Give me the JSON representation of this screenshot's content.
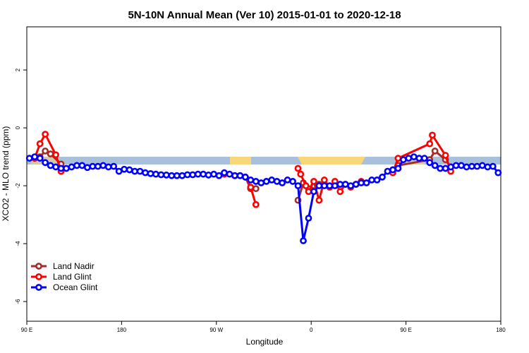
{
  "chart_data": {
    "type": "line",
    "title": "5N-10N Annual Mean (Ver 10)   2015-01-01 to 2020-12-18",
    "xlabel": "Longitude",
    "ylabel": "XCO2 - MLO trend (ppm)",
    "xlim": [
      90,
      540
    ],
    "xticks": [
      {
        "value": 90,
        "label": "90 E"
      },
      {
        "value": 180,
        "label": "180"
      },
      {
        "value": 270,
        "label": "90 W"
      },
      {
        "value": 360,
        "label": "0"
      },
      {
        "value": 450,
        "label": "90 E"
      },
      {
        "value": 540,
        "label": "180"
      }
    ],
    "ylim": [
      -6.68,
      3.49
    ],
    "yticks": [
      2,
      0,
      -2,
      -4,
      -6
    ],
    "legend": "bottom-left",
    "series": [
      {
        "name": "Land Nadir",
        "color": "#a52a2a",
        "x": [
          97.5,
          102.5,
          107.5,
          112.5,
          122.5,
          200,
          292.5,
          297.5,
          302.5,
          307.5,
          330,
          347.5,
          352.5,
          357.5,
          362.5,
          367.5,
          372.5,
          400,
          437.5,
          442.5,
          472.5,
          477.5,
          487.5,
          492.5
        ],
        "values": [
          -1.05,
          -1.0,
          -0.8,
          -0.9,
          -1.25,
          null,
          -1.65,
          -1.7,
          -2.1,
          -2.1,
          null,
          -2.5,
          -1.9,
          -2.1,
          -2.0,
          -1.95,
          -1.95,
          null,
          -1.45,
          -1.3,
          -1.1,
          -0.8,
          -1.1,
          -1.35
        ]
      },
      {
        "name": "Land Glint",
        "color": "#ff0000",
        "x": [
          97.5,
          102.5,
          107.5,
          117.5,
          122.5,
          200,
          277.5,
          287.5,
          297.5,
          302.5,
          307.5,
          330,
          347.5,
          350,
          355,
          357.5,
          362.5,
          367.5,
          372.5,
          377.5,
          382.5,
          387.5,
          392.5,
          397.5,
          402.5,
          407.5,
          420,
          437.5,
          442.5,
          472.5,
          475,
          487.5,
          492.5
        ],
        "values": [
          -1.05,
          -0.55,
          -0.22,
          -0.93,
          -1.5,
          null,
          -1.6,
          -1.65,
          -1.7,
          -2.05,
          -2.65,
          null,
          -1.4,
          -1.6,
          -2.0,
          -2.2,
          -1.85,
          -2.5,
          -1.8,
          -2.05,
          -1.85,
          -2.2,
          -1.95,
          -2.05,
          -1.95,
          -1.85,
          null,
          -1.55,
          -1.05,
          -0.55,
          -0.25,
          -0.95,
          -1.5
        ]
      },
      {
        "name": "Ocean Glint",
        "color": "#0000ff",
        "x": [
          92.5,
          97.5,
          102.5,
          107.5,
          112.5,
          117.5,
          122.5,
          127.5,
          132.5,
          137.5,
          142.5,
          147.5,
          152.5,
          157.5,
          162.5,
          167.5,
          172.5,
          177.5,
          182.5,
          187.5,
          192.5,
          197.5,
          202.5,
          207.5,
          212.5,
          217.5,
          222.5,
          227.5,
          232.5,
          237.5,
          242.5,
          247.5,
          252.5,
          257.5,
          262.5,
          267.5,
          272.5,
          277.5,
          282.5,
          287.5,
          292.5,
          297.5,
          302.5,
          307.5,
          312.5,
          317.5,
          322.5,
          327.5,
          332.5,
          337.5,
          342.5,
          347.5,
          352.5,
          357.5,
          362.5,
          367.5,
          372.5,
          377.5,
          382.5,
          387.5,
          392.5,
          397.5,
          402.5,
          407.5,
          412.5,
          417.5,
          422.5,
          427.5,
          432.5,
          437.5,
          442.5,
          447.5,
          452.5,
          457.5,
          462.5,
          467.5,
          472.5,
          477.5,
          482.5,
          487.5,
          492.5,
          497.5,
          502.5,
          507.5,
          512.5,
          517.5,
          522.5,
          527.5,
          532.5,
          537.5
        ],
        "values": [
          -1.05,
          -1.0,
          -1.05,
          -1.2,
          -1.3,
          -1.35,
          -1.4,
          -1.4,
          -1.35,
          -1.3,
          -1.3,
          -1.37,
          -1.33,
          -1.33,
          -1.3,
          -1.35,
          -1.33,
          -1.5,
          -1.43,
          -1.45,
          -1.5,
          -1.5,
          -1.55,
          -1.58,
          -1.6,
          -1.62,
          -1.63,
          -1.65,
          -1.65,
          -1.65,
          -1.62,
          -1.62,
          -1.6,
          -1.6,
          -1.63,
          -1.6,
          -1.65,
          -1.55,
          -1.6,
          -1.65,
          -1.65,
          -1.7,
          -1.8,
          -1.85,
          -1.9,
          -1.85,
          -1.8,
          -1.85,
          -1.9,
          -1.8,
          -1.85,
          -2.0,
          -3.9,
          -3.12,
          -2.2,
          -2.0,
          -2.0,
          -2.0,
          -2.0,
          -1.95,
          -1.95,
          -2.0,
          -1.95,
          -1.9,
          -1.9,
          -1.8,
          -1.8,
          -1.7,
          -1.5,
          -1.45,
          -1.4,
          -1.1,
          -1.05,
          -1.0,
          -1.05,
          -1.05,
          -1.2,
          -1.3,
          -1.4,
          -1.4,
          -1.35,
          -1.3,
          -1.3,
          -1.35,
          -1.33,
          -1.33,
          -1.3,
          -1.35,
          -1.33,
          -1.55
        ]
      }
    ]
  }
}
